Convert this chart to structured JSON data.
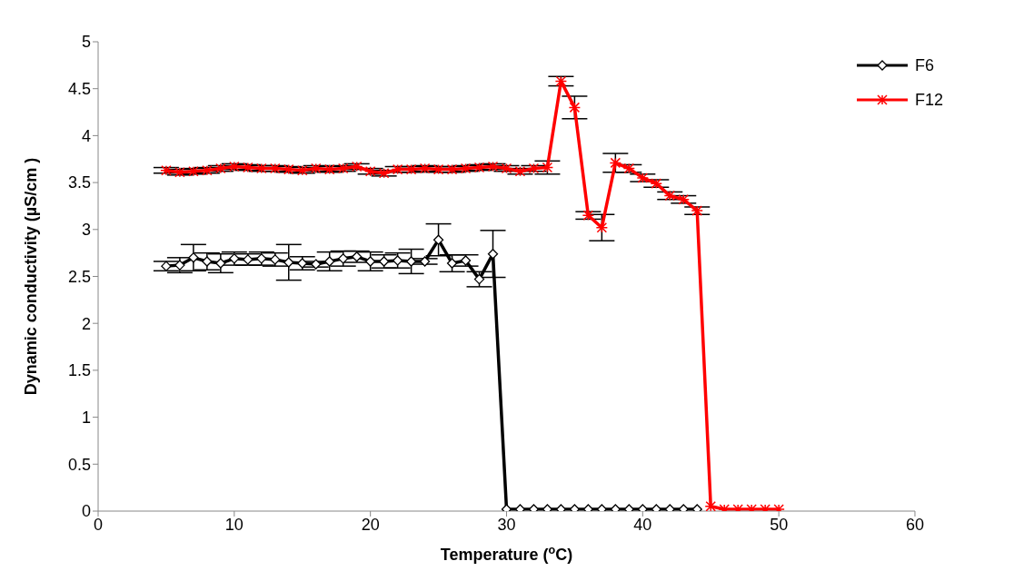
{
  "chart_data": {
    "type": "line",
    "xlabel": "Temperature ($^{o}$C)",
    "ylabel": "Dynamic conductivity (µS/cm )",
    "x": [
      5,
      6,
      7,
      8,
      9,
      10,
      11,
      12,
      13,
      14,
      15,
      16,
      17,
      18,
      19,
      20,
      21,
      22,
      23,
      24,
      25,
      26,
      27,
      28,
      29,
      30,
      31,
      32,
      33,
      34,
      35,
      36,
      37,
      38,
      39,
      40,
      41,
      42,
      43,
      44,
      45,
      46,
      47,
      48,
      49,
      50
    ],
    "series": [
      {
        "name": "F6",
        "color": "#000000",
        "marker": "diamond",
        "values": [
          2.61,
          2.62,
          2.7,
          2.66,
          2.64,
          2.69,
          2.68,
          2.69,
          2.68,
          2.65,
          2.64,
          2.63,
          2.66,
          2.69,
          2.71,
          2.66,
          2.66,
          2.67,
          2.66,
          2.66,
          2.89,
          2.64,
          2.67,
          2.47,
          2.74,
          0.02,
          0.02,
          0.02,
          0.02,
          0.02,
          0.02,
          0.02,
          0.02,
          0.02,
          0.02,
          0.02,
          0.02,
          0.02,
          0.02,
          0.02,
          null,
          null,
          null,
          null,
          null,
          null
        ],
        "errors": [
          0.05,
          0.08,
          0.14,
          0.09,
          0.1,
          0.07,
          0.06,
          0.07,
          0.07,
          0.19,
          0.07,
          0.03,
          0.1,
          0.08,
          0.06,
          0.1,
          0.07,
          0.08,
          0.13,
          0.03,
          0.17,
          0.09,
          0.06,
          0.08,
          0.25,
          null,
          null,
          null,
          null,
          null,
          null,
          null,
          null,
          null,
          null,
          null,
          null,
          null,
          null,
          null,
          null,
          null,
          null,
          null,
          null,
          null
        ]
      },
      {
        "name": "F12",
        "color": "#ff0000",
        "marker": "cross",
        "values": [
          3.63,
          3.61,
          3.62,
          3.63,
          3.65,
          3.67,
          3.66,
          3.65,
          3.65,
          3.64,
          3.63,
          3.65,
          3.64,
          3.65,
          3.67,
          3.62,
          3.6,
          3.64,
          3.64,
          3.65,
          3.64,
          3.64,
          3.65,
          3.66,
          3.67,
          3.65,
          3.62,
          3.65,
          3.66,
          4.58,
          4.3,
          3.15,
          3.02,
          3.71,
          3.65,
          3.55,
          3.49,
          3.36,
          3.32,
          3.2,
          0.05,
          0.02,
          0.02,
          0.02,
          0.02,
          0.02
        ],
        "errors": [
          0.03,
          0.03,
          0.03,
          0.03,
          0.03,
          0.03,
          0.03,
          0.03,
          0.03,
          0.03,
          0.03,
          0.03,
          0.03,
          0.03,
          0.03,
          0.03,
          0.03,
          0.03,
          0.03,
          0.03,
          0.03,
          0.03,
          0.03,
          0.03,
          0.03,
          0.03,
          0.03,
          0.03,
          0.07,
          0.05,
          0.12,
          0.04,
          0.14,
          0.1,
          0.04,
          0.04,
          0.04,
          0.04,
          0.04,
          0.04,
          null,
          null,
          null,
          null,
          null,
          null
        ]
      }
    ],
    "xlim": [
      0,
      60
    ],
    "xticks": [
      0,
      10,
      20,
      30,
      40,
      50,
      60
    ],
    "ylim": [
      0,
      5
    ],
    "yticks": [
      0,
      0.5,
      1,
      1.5,
      2,
      2.5,
      3,
      3.5,
      4,
      4.5,
      5
    ],
    "legend": "top right",
    "line_style": "solid"
  }
}
